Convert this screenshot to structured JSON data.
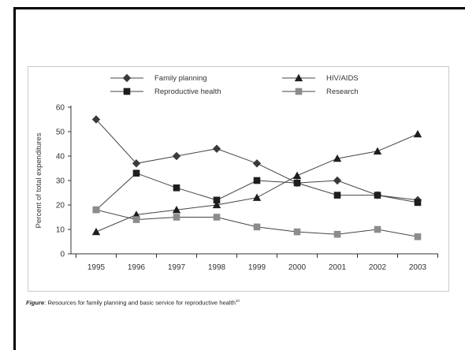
{
  "chart_data": {
    "type": "line",
    "x": [
      "1995",
      "1996",
      "1997",
      "1998",
      "1999",
      "2000",
      "2001",
      "2002",
      "2003"
    ],
    "ylabel": "Percent of total expenditures",
    "ylim": [
      0,
      60
    ],
    "yticks": [
      0,
      10,
      20,
      30,
      40,
      50,
      60
    ],
    "grid": false,
    "legend_position": "top",
    "series": [
      {
        "name": "Family planning",
        "marker": "diamond",
        "color": "#3a3a3a",
        "values": [
          55,
          37,
          40,
          43,
          37,
          29,
          30,
          24,
          22
        ]
      },
      {
        "name": "Reproductive health",
        "marker": "square",
        "color": "#1e1e1e",
        "values": [
          18,
          33,
          27,
          22,
          30,
          29,
          24,
          24,
          21
        ]
      },
      {
        "name": "HIV/AIDS",
        "marker": "triangle",
        "color": "#1e1e1e",
        "values": [
          9,
          16,
          18,
          20,
          23,
          32,
          39,
          42,
          49
        ]
      },
      {
        "name": "Research",
        "marker": "square",
        "color": "#8c8c8c",
        "values": [
          18,
          14,
          15,
          15,
          11,
          9,
          8,
          10,
          7
        ]
      }
    ]
  },
  "caption": {
    "label": "Figure",
    "text": ": Resources for family planning and basic service for reproductive health",
    "ref": "10"
  }
}
